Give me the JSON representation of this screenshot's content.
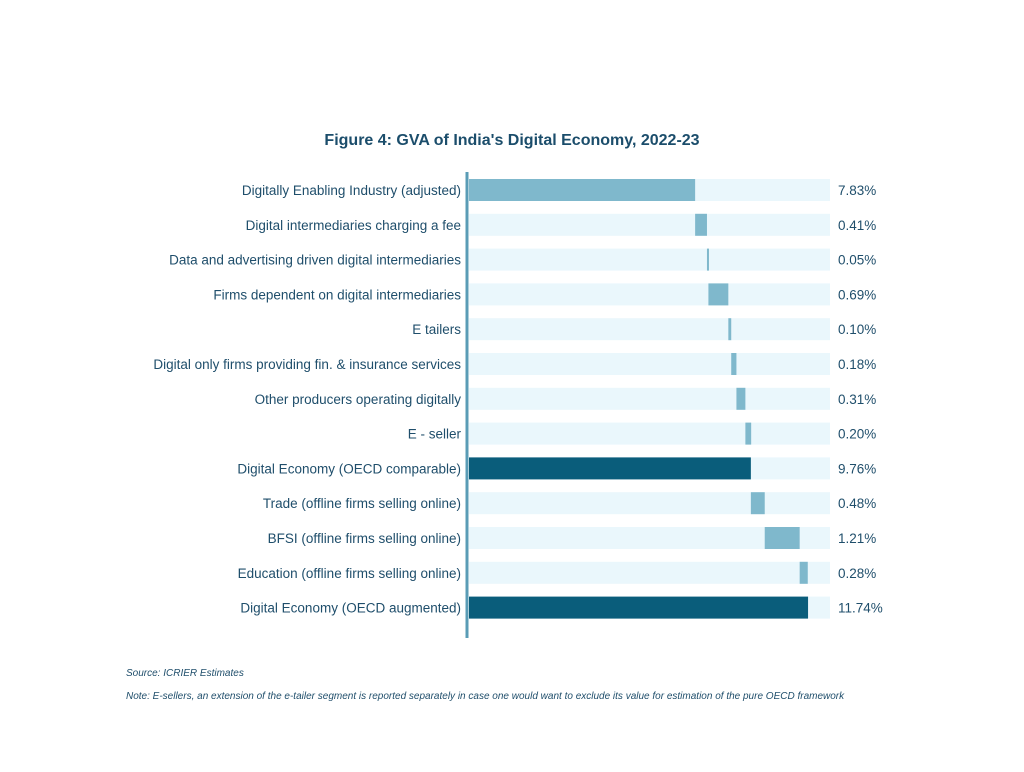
{
  "chart_data": {
    "type": "bar",
    "subtype": "waterfall",
    "title": "Figure 4: GVA of India's Digital Economy, 2022-23",
    "xlim": [
      0,
      12.5
    ],
    "categories": [
      "Digitally Enabling Industry (adjusted)",
      "Digital intermediaries charging a fee",
      "Data and advertising driven digital intermediaries",
      "Firms dependent on digital intermediaries",
      "E tailers",
      "Digital only firms providing fin. & insurance services",
      "Other producers operating digitally",
      "E - seller",
      "Digital Economy (OECD comparable)",
      "Trade (offline firms selling online)",
      "BFSI (offline firms selling online)",
      "Education (offline firms selling online)",
      "Digital Economy (OECD augmented)"
    ],
    "values": [
      7.83,
      0.41,
      0.05,
      0.69,
      0.1,
      0.18,
      0.31,
      0.2,
      9.76,
      0.48,
      1.21,
      0.28,
      11.74
    ],
    "value_labels": [
      "7.83%",
      "0.41%",
      "0.05%",
      "0.69%",
      "0.10%",
      "0.18%",
      "0.31%",
      "0.20%",
      "9.76%",
      "0.48%",
      "1.21%",
      "0.28%",
      "11.74%"
    ],
    "bar_kind": [
      "increase",
      "increase",
      "increase",
      "increase",
      "increase",
      "increase",
      "increase",
      "increase",
      "total",
      "increase",
      "increase",
      "increase",
      "total"
    ],
    "colors": {
      "increase": "#7fb8cc",
      "total": "#0a5d7b",
      "track": "#eaf7fc",
      "axis": "#5a9cb6"
    }
  },
  "notes": {
    "source": "Source: ICRIER Estimates",
    "note": "Note: E-sellers, an extension of the e-tailer segment is reported separately in case one would want to exclude its value for estimation of the pure OECD framework"
  }
}
